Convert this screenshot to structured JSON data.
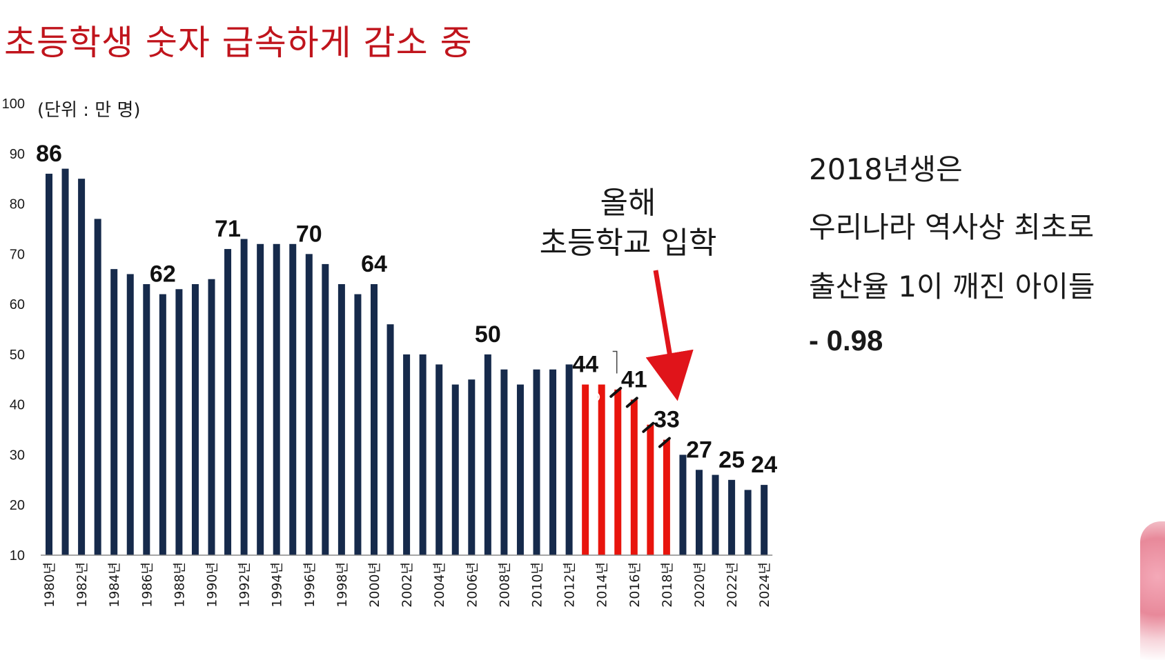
{
  "title": "초등학생 숫자 급속하게 감소 중",
  "side_note": {
    "line1": "2018년생은",
    "line2": "우리나라 역사상 최초로",
    "line3": "출산율 1이 깨진 아이들",
    "line4": "- 0.98"
  },
  "annotation": {
    "line1": "올해",
    "line2": "초등학교 입학"
  },
  "colors": {
    "title": "#c0141c",
    "bar_default": "#162a4b",
    "bar_highlight": "#e8140d",
    "arrow": "#e0141a"
  },
  "chart_data": {
    "type": "bar",
    "unit_label": "(단위 : 만 명)",
    "ylim": [
      10,
      100
    ],
    "yticks": [
      10,
      20,
      30,
      40,
      50,
      60,
      70,
      80,
      90,
      100
    ],
    "x": [
      1980,
      1981,
      1982,
      1983,
      1984,
      1985,
      1986,
      1987,
      1988,
      1989,
      1990,
      1991,
      1992,
      1993,
      1994,
      1995,
      1996,
      1997,
      1998,
      1999,
      2000,
      2001,
      2002,
      2003,
      2004,
      2005,
      2006,
      2007,
      2008,
      2009,
      2010,
      2011,
      2012,
      2013,
      2014,
      2015,
      2016,
      2017,
      2018,
      2019,
      2020,
      2021,
      2022,
      2023,
      2024
    ],
    "values": [
      86,
      87,
      85,
      77,
      67,
      66,
      64,
      62,
      63,
      64,
      65,
      71,
      73,
      72,
      72,
      72,
      70,
      68,
      64,
      62,
      64,
      56,
      50,
      50,
      48,
      44,
      45,
      50,
      47,
      44,
      47,
      47,
      48,
      44,
      44,
      43,
      41,
      36,
      33,
      30,
      27,
      26,
      25,
      23,
      24
    ],
    "highlighted_years": [
      2013,
      2014,
      2015,
      2016,
      2017,
      2018
    ],
    "xtick_labels": [
      "1980년",
      "1982년",
      "1984년",
      "1986년",
      "1988년",
      "1990년",
      "1992년",
      "1994년",
      "1996년",
      "1998년",
      "2000년",
      "2002년",
      "2004년",
      "2006년",
      "2008년",
      "2010년",
      "2012년",
      "2014년",
      "2016년",
      "2018년",
      "2020년",
      "2022년",
      "2024년"
    ],
    "data_labels": [
      {
        "year": 1980,
        "text": "86"
      },
      {
        "year": 1987,
        "text": "62"
      },
      {
        "year": 1991,
        "text": "71"
      },
      {
        "year": 1996,
        "text": "70"
      },
      {
        "year": 2000,
        "text": "64"
      },
      {
        "year": 2007,
        "text": "50"
      },
      {
        "year": 2013,
        "text": "44"
      },
      {
        "year": 2016,
        "text": "41"
      },
      {
        "year": 2018,
        "text": "33"
      },
      {
        "year": 2020,
        "text": "27"
      },
      {
        "year": 2022,
        "text": "25"
      },
      {
        "year": 2024,
        "text": "24"
      }
    ],
    "grid": false,
    "legend": "none"
  }
}
